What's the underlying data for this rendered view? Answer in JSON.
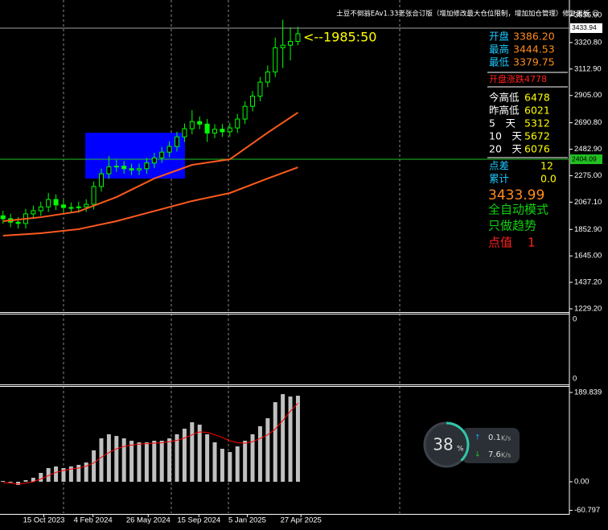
{
  "header": {
    "title": "土豆不倒翁EAv1.33老张合订版（增加修改最大仓位限制，增加加仓管理）修复面板 ☺"
  },
  "chart_data": [
    {
      "type": "candlestick",
      "open": [
        1960,
        1937,
        1910,
        1900,
        1975,
        2000,
        2030,
        2088,
        2045,
        2025,
        2025,
        2030,
        2050,
        2190,
        2290,
        2345,
        2350,
        2330,
        2320,
        2330,
        2375,
        2415,
        2460,
        2505,
        2580,
        2644,
        2700,
        2680,
        2610,
        2640,
        2620,
        2650,
        2720,
        2820,
        2900,
        3010,
        3090,
        3280,
        3300,
        3330
      ],
      "high": [
        2000,
        1977,
        1950,
        2015,
        2040,
        2070,
        2140,
        2128,
        2085,
        2065,
        2070,
        2090,
        2230,
        2330,
        2430,
        2400,
        2390,
        2370,
        2370,
        2415,
        2455,
        2500,
        2545,
        2620,
        2685,
        2790,
        2740,
        2720,
        2680,
        2680,
        2690,
        2760,
        2860,
        2940,
        3050,
        3140,
        3360,
        3500,
        3440,
        3444.53
      ],
      "low": [
        1897,
        1870,
        1860,
        1860,
        1935,
        1960,
        1990,
        2005,
        1985,
        1985,
        1985,
        1990,
        2010,
        2150,
        2250,
        2305,
        2290,
        2280,
        2280,
        2290,
        2335,
        2375,
        2420,
        2465,
        2540,
        2600,
        2640,
        2540,
        2570,
        2580,
        2580,
        2610,
        2680,
        2780,
        2860,
        2970,
        3050,
        3120,
        3180,
        3300
      ],
      "close": [
        1937,
        1910,
        1900,
        1975,
        2000,
        2030,
        2088,
        2045,
        2025,
        2025,
        2030,
        2050,
        2190,
        2290,
        2345,
        2350,
        2330,
        2320,
        2330,
        2375,
        2415,
        2460,
        2505,
        2580,
        2644,
        2700,
        2680,
        2610,
        2640,
        2620,
        2650,
        2720,
        2820,
        2900,
        3010,
        3090,
        3280,
        3300,
        3330,
        3390
      ],
      "color": "#00ff00",
      "series": [
        {
          "color": "#ff5a1e",
          "x": [
            0,
            5,
            10,
            15,
            20,
            25,
            30,
            35,
            39
          ],
          "values": [
            1918,
            1949,
            1994,
            2107,
            2253,
            2360,
            2404,
            2613,
            2771
          ]
        },
        {
          "color": "#ff5a1e",
          "x": [
            0,
            5,
            10,
            15,
            20,
            25,
            30,
            35,
            39
          ],
          "values": [
            1804,
            1823,
            1855,
            1918,
            1997,
            2076,
            2139,
            2253,
            2341
          ]
        }
      ],
      "price_lines": [
        {
          "value": 3433.94,
          "color": "#a0a0a0"
        },
        {
          "value": 2404.09,
          "color": "#22c022"
        }
      ],
      "annotation": "<--1985:50",
      "xlim": [
        -0.4,
        74.9
      ],
      "xticks": [
        {
          "value": -1.5,
          "label": "023"
        },
        {
          "value": 5.4,
          "label": "15 Oct 2023"
        },
        {
          "value": 11.9,
          "label": "4 Feb 2024"
        },
        {
          "value": 19.2,
          "label": "26 May 2024"
        },
        {
          "value": 25.9,
          "label": "15 Sep 2024"
        },
        {
          "value": 32.3,
          "label": "5 Jan 2025"
        },
        {
          "value": 39.4,
          "label": "27 Apr 2025"
        }
      ],
      "ylim": [
        1204,
        3655
      ],
      "yticks": [
        {
          "value": 3535,
          "label": "3535.00"
        },
        {
          "value": 3320.8,
          "label": "3320.80"
        },
        {
          "value": 3112.9,
          "label": "3112.90"
        },
        {
          "value": 2905,
          "label": "2905.00"
        },
        {
          "value": 2690.8,
          "label": "2690.80"
        },
        {
          "value": 2482.9,
          "label": "2482.90"
        },
        {
          "value": 2275,
          "label": "2275.00"
        },
        {
          "value": 2067.1,
          "label": "2067.10"
        },
        {
          "value": 1852.9,
          "label": "1852.90"
        },
        {
          "value": 1645,
          "label": "1645.00"
        },
        {
          "value": 1437.2,
          "label": "1437.20"
        },
        {
          "value": 1229.2,
          "label": "1229.20"
        }
      ]
    },
    {
      "type": "empty",
      "yticks": [
        0,
        0
      ]
    },
    {
      "type": "histogram-line",
      "values": [
        1.7,
        -1.7,
        -6.8,
        3.4,
        8.5,
        18.8,
        29.1,
        32.5,
        29.1,
        32.5,
        35.9,
        41.0,
        66.7,
        92.3,
        100.9,
        97.4,
        92.3,
        87.2,
        83.8,
        83.8,
        87.2,
        87.2,
        92.3,
        100.9,
        112.8,
        126.5,
        121.4,
        100.9,
        83.8,
        70.1,
        63.2,
        75.2,
        87.2,
        100.9,
        118.0,
        135.0,
        169.2,
        186.3,
        181.2,
        182.9
      ],
      "color": "#c0c0c0",
      "signal": [
        -2,
        -3,
        -5,
        -3,
        0,
        6,
        13,
        20,
        24,
        27,
        29,
        33,
        40,
        52,
        62,
        70,
        75,
        78,
        80,
        81,
        82,
        83,
        85,
        88,
        93,
        100,
        106,
        105,
        100,
        94,
        87,
        83,
        82,
        85,
        92,
        100,
        112,
        130,
        150,
        167
      ],
      "signal_color": "#ff0000",
      "ylim": [
        -70.1,
        201.8
      ],
      "yticks": [
        189.839,
        {
          "value": 0,
          "label": "0.00"
        },
        -60.797
      ]
    }
  ],
  "panel": {
    "price_rows": [
      [
        "开盘",
        "3386.20"
      ],
      [
        "最高",
        "3444.53"
      ],
      [
        "最低",
        "3379.75"
      ]
    ],
    "open_change": "开盘涨跌4778",
    "range_rows": [
      [
        "今高低",
        "6478"
      ],
      [
        "昨高低",
        "6021"
      ],
      [
        "5　天",
        "5312"
      ],
      [
        "10　天",
        "5672"
      ],
      [
        "20　天",
        "6076"
      ]
    ],
    "stat_rows": [
      [
        "点差",
        "12"
      ],
      [
        "累计",
        "0.0"
      ]
    ],
    "price": "3433.99",
    "mode": "全自动模式",
    "trend": "只做趋势",
    "point_value": [
      "点值",
      "1"
    ]
  },
  "network_widget": {
    "percent": 38,
    "percent_sign": "%",
    "up": "0.1",
    "down": "7.6",
    "unit": "K/s"
  }
}
